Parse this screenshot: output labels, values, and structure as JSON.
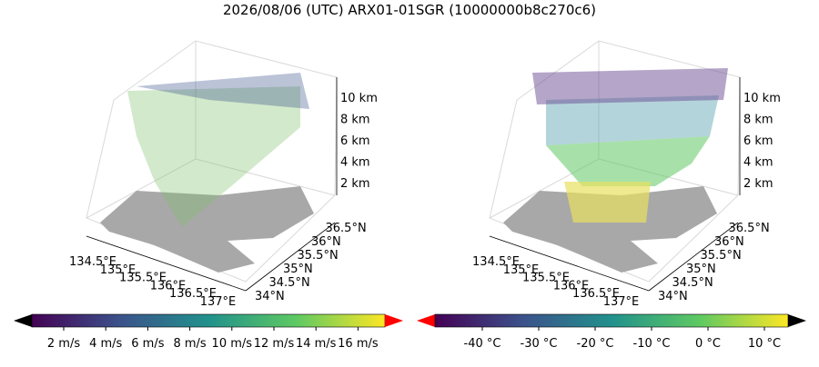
{
  "title": "2026/08/06 (UTC) ARX01-01SGR (10000000b8c270c6)",
  "panels": [
    {
      "x_ticks": [
        "134.5°E",
        "135°E",
        "135.5°E",
        "136°E",
        "136.5°E",
        "137°E"
      ],
      "y_ticks": [
        "34°N",
        "34.5°N",
        "35°N",
        "35.5°N",
        "36°N",
        "36.5°N"
      ],
      "z_ticks": [
        "2 km",
        "4 km",
        "6 km",
        "8 km",
        "10 km"
      ]
    },
    {
      "x_ticks": [
        "134.5°E",
        "135°E",
        "135.5°E",
        "136°E",
        "136.5°E",
        "137°E"
      ],
      "y_ticks": [
        "34°N",
        "34.5°N",
        "35°N",
        "35.5°N",
        "36°N",
        "36.5°N"
      ],
      "z_ticks": [
        "2 km",
        "4 km",
        "6 km",
        "8 km",
        "10 km"
      ]
    }
  ],
  "colorbars": [
    {
      "ticks": [
        "2 m/s",
        "4 m/s",
        "6 m/s",
        "8 m/s",
        "10 m/s",
        "12 m/s",
        "14 m/s",
        "16 m/s"
      ]
    },
    {
      "ticks": [
        "-40 °C",
        "-30 °C",
        "-20 °C",
        "-10 °C",
        "0 °C",
        "10 °C"
      ]
    }
  ]
}
